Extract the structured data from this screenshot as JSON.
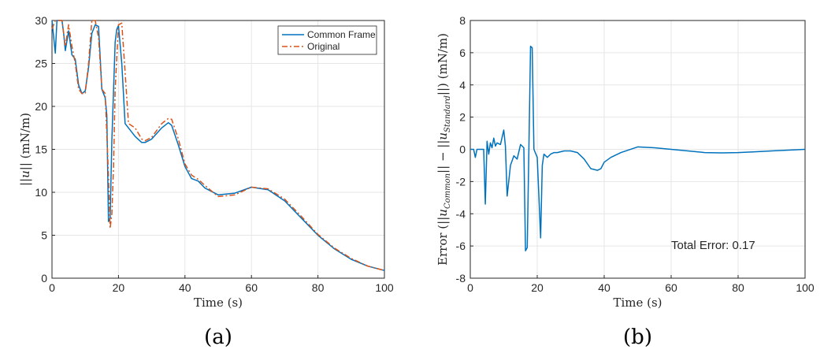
{
  "chart_data": [
    {
      "type": "line",
      "panel_label": "(a)",
      "xlabel": "Time (s)",
      "ylabel": "||u|| (mN/m)",
      "xlim": [
        0,
        100
      ],
      "ylim": [
        0,
        30
      ],
      "xticks": [
        0,
        20,
        40,
        60,
        80,
        100
      ],
      "yticks": [
        0,
        5,
        10,
        15,
        20,
        25,
        30
      ],
      "grid": true,
      "legend_position": "top-right",
      "series": [
        {
          "name": "Common Frame",
          "color": "#0072BD",
          "style": "solid",
          "x": [
            0,
            1,
            1.5,
            2,
            3,
            3.5,
            4,
            5,
            6,
            7,
            8,
            9,
            10,
            11,
            12,
            13,
            14,
            15,
            16,
            16.5,
            17,
            17.5,
            18,
            19,
            19.5,
            20,
            21,
            22,
            23,
            25,
            27,
            28,
            30,
            33,
            35,
            36,
            38,
            40,
            42,
            44,
            46,
            50,
            55,
            60,
            65,
            70,
            75,
            80,
            85,
            90,
            95,
            100
          ],
          "y": [
            30,
            26.2,
            30,
            30,
            30,
            28.5,
            26.5,
            28.8,
            26,
            25.5,
            22.5,
            21.5,
            21.8,
            24.5,
            28.5,
            29.5,
            29.3,
            22,
            21,
            19,
            6.6,
            7,
            16,
            27.5,
            29,
            29.4,
            25,
            18,
            17.5,
            16.5,
            15.8,
            15.8,
            16.2,
            17.5,
            18.1,
            17.8,
            15.5,
            13,
            11.6,
            11.3,
            10.5,
            9.7,
            9.9,
            10.6,
            10.3,
            9,
            7,
            5,
            3.4,
            2.2,
            1.4,
            0.9
          ]
        },
        {
          "name": "Original",
          "color": "#D95319",
          "style": "dashdot",
          "x": [
            0,
            1,
            2,
            3,
            4,
            5,
            6,
            7,
            8,
            9,
            10,
            11,
            12,
            13,
            14,
            15,
            16,
            17,
            17.5,
            18,
            18.5,
            19,
            20,
            21,
            22,
            23,
            25,
            27,
            28,
            30,
            33,
            35,
            36,
            38,
            40,
            42,
            44,
            46,
            50,
            55,
            60,
            65,
            70,
            75,
            80,
            85,
            90,
            95,
            100
          ],
          "y": [
            29,
            30,
            30,
            30,
            27,
            29.5,
            27,
            25,
            22,
            21.5,
            21.5,
            25,
            30,
            30,
            28,
            22,
            21.5,
            12,
            5.8,
            7.5,
            13,
            22,
            29.5,
            29.7,
            24,
            18,
            17.5,
            16.2,
            16,
            16.4,
            18,
            18.6,
            18.5,
            16.2,
            13.3,
            12,
            11.5,
            10.8,
            9.5,
            9.7,
            10.6,
            10.4,
            9.2,
            7.2,
            5.1,
            3.5,
            2.3,
            1.4,
            0.9
          ]
        }
      ]
    },
    {
      "type": "line",
      "panel_label": "(b)",
      "xlabel": "Time (s)",
      "ylabel": "Error (||u_Common|| − ||u_Standard||) (mN/m)",
      "xlim": [
        0,
        100
      ],
      "ylim": [
        -8,
        8
      ],
      "xticks": [
        0,
        20,
        40,
        60,
        80,
        100
      ],
      "yticks": [
        -8,
        -6,
        -4,
        -2,
        0,
        2,
        4,
        6,
        8
      ],
      "grid": true,
      "annotation": "Total Error: 0.17",
      "series": [
        {
          "color": "#0072BD",
          "style": "solid",
          "x": [
            0,
            1,
            1.5,
            2,
            3,
            4,
            4.5,
            5,
            5.5,
            6,
            6.5,
            7,
            7.5,
            8,
            9,
            10,
            10.5,
            11,
            12,
            13,
            14,
            15,
            16,
            16.5,
            17,
            17.5,
            18,
            18.5,
            19,
            20,
            21,
            21.5,
            22,
            23,
            24,
            25,
            26,
            28,
            30,
            32,
            34,
            36,
            38,
            39,
            40,
            42,
            45,
            50,
            55,
            60,
            65,
            70,
            75,
            80,
            85,
            90,
            95,
            100
          ],
          "y": [
            0,
            0,
            -0.5,
            0,
            0,
            0,
            -3.4,
            0.5,
            -0.3,
            0.4,
            0.1,
            0.7,
            0.2,
            0.4,
            0.3,
            1.2,
            0.2,
            -2.9,
            -1,
            -0.4,
            -0.6,
            0.3,
            0.1,
            -6.3,
            -6.1,
            0,
            6.4,
            6.3,
            0,
            -0.5,
            -5.5,
            -1,
            -0.3,
            -0.5,
            -0.3,
            -0.2,
            -0.2,
            -0.1,
            -0.1,
            -0.2,
            -0.6,
            -1.2,
            -1.3,
            -1.2,
            -0.8,
            -0.5,
            -0.2,
            0.15,
            0.1,
            0,
            -0.1,
            -0.2,
            -0.22,
            -0.2,
            -0.15,
            -0.1,
            -0.05,
            0
          ]
        }
      ]
    }
  ]
}
